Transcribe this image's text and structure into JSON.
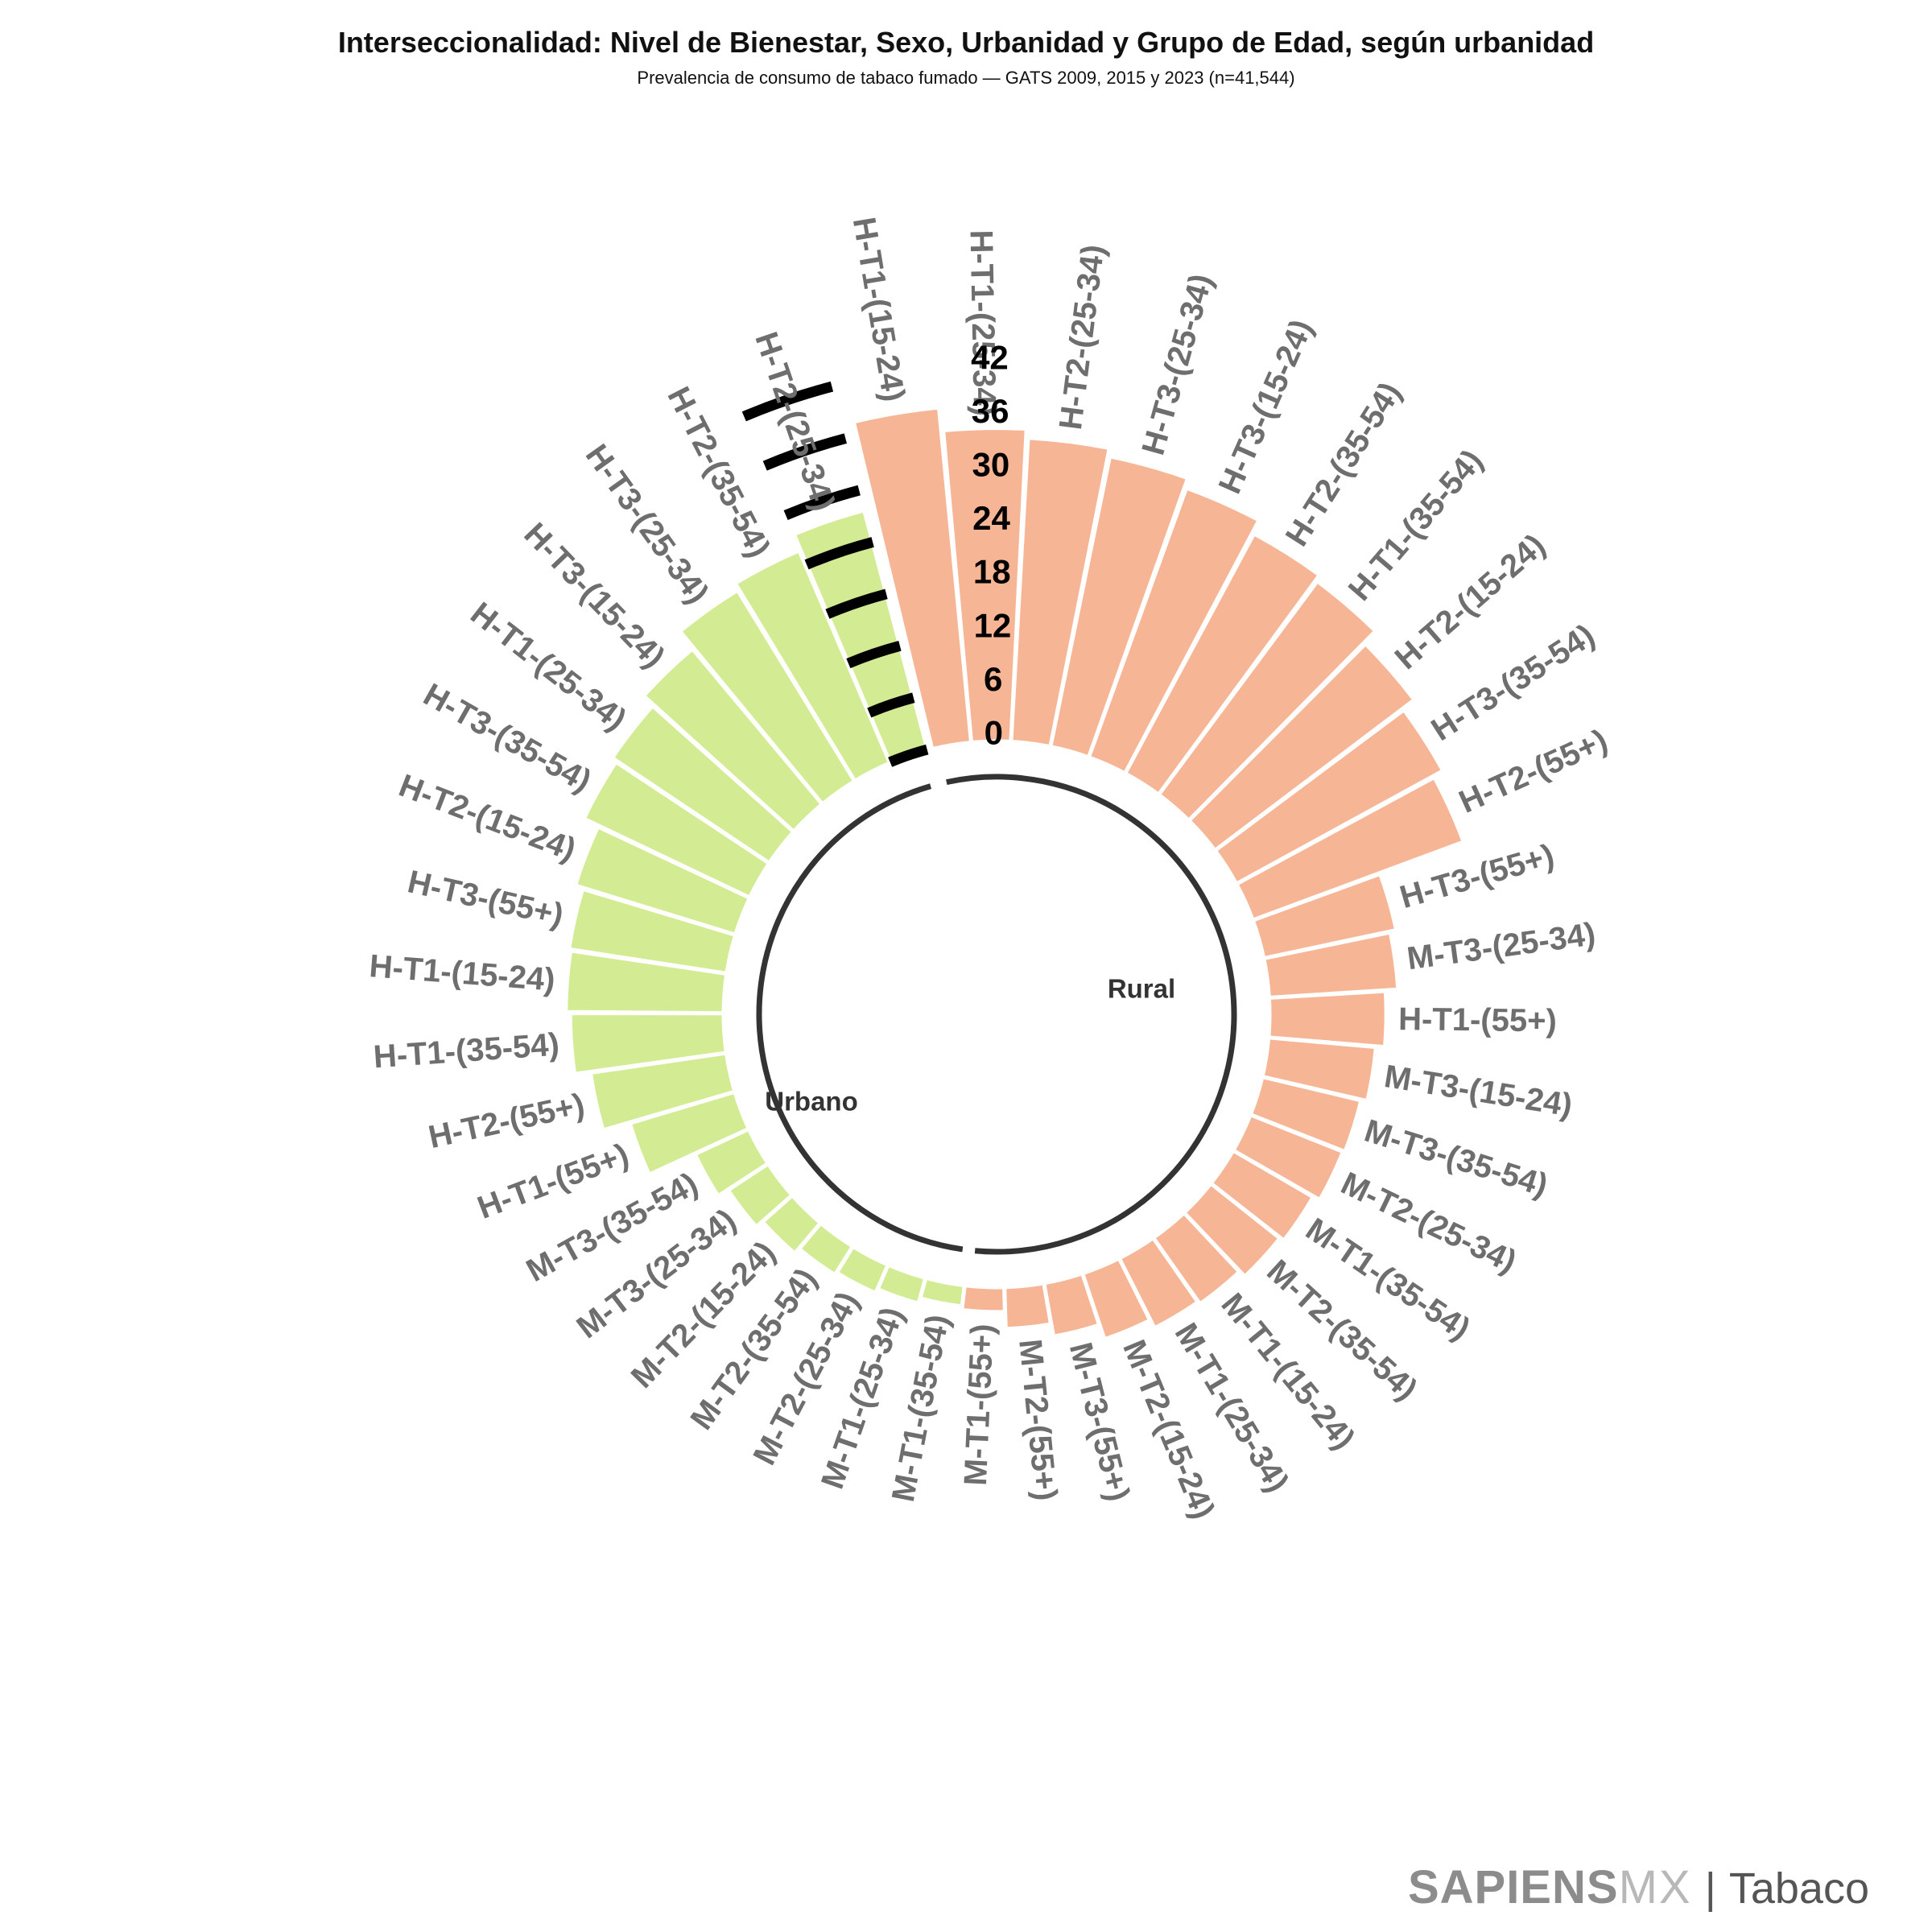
{
  "title": "Interseccionalidad: Nivel de Bienestar, Sexo, Urbanidad y Grupo de Edad, según urbanidad",
  "subtitle": "Prevalencia de consumo de tabaco fumado — GATS 2009, 2015 y 2023 (n=41,544)",
  "brand": {
    "name": "SAPIENS",
    "suffix": "MX",
    "separator": "|",
    "section": "Tabaco"
  },
  "chart_data": {
    "type": "bar",
    "coordinate_system": "polar",
    "radial_ticks": [
      "0",
      "6",
      "12",
      "18",
      "24",
      "30",
      "36",
      "42"
    ],
    "colors": {
      "Urbano": "#f6b595",
      "Rural": "#d3ec94",
      "ring": "#333333",
      "tick": "#000000",
      "label": "#6e6e6e"
    },
    "groups": [
      {
        "name": "Urbano",
        "categories": [
          "H-T1-(15-24)",
          "H-T1-(25-34)",
          "H-T2-(25-34)",
          "H-T3-(25-34)",
          "H-T3-(15-24)",
          "H-T2-(35-54)",
          "H-T1-(35-54)",
          "H-T2-(15-24)",
          "H-T3-(35-54)",
          "H-T2-(55+)",
          "H-T3-(55+)",
          "M-T3-(25-34)",
          "H-T1-(55+)",
          "M-T3-(15-24)",
          "M-T3-(35-54)",
          "M-T2-(25-34)",
          "M-T1-(35-54)",
          "M-T2-(35-54)",
          "M-T1-(15-24)",
          "M-T1-(25-34)",
          "M-T2-(15-24)",
          "M-T3-(55+)",
          "M-T2-(55+)",
          "M-T1-(55+)"
        ],
        "values": [
          37.5,
          34.9,
          33.9,
          33.0,
          31.9,
          30.3,
          29.6,
          27.8,
          26.2,
          25.0,
          15.0,
          14.3,
          12.9,
          11.9,
          11.2,
          11.0,
          10.2,
          9.7,
          8.9,
          8.6,
          7.6,
          5.9,
          4.5,
          2.6
        ]
      },
      {
        "name": "Rural",
        "categories": [
          "M-T1-(35-54)",
          "M-T1-(25-34)",
          "M-T2-(25-34)",
          "M-T2-(35-54)",
          "M-T2-(15-24)",
          "M-T3-(25-34)",
          "M-T3-(35-54)",
          "H-T1-(55+)",
          "H-T2-(55+)",
          "H-T1-(35-54)",
          "H-T1-(15-24)",
          "H-T3-(55+)",
          "H-T2-(15-24)",
          "H-T3-(35-54)",
          "H-T1-(25-34)",
          "H-T3-(15-24)",
          "H-T3-(25-34)",
          "H-T2-(35-54)",
          "H-T2-(25-34)"
        ],
        "values": [
          2.2,
          2.8,
          3.3,
          3.6,
          4.3,
          5.2,
          6.5,
          12.1,
          15.2,
          17.0,
          17.5,
          17.7,
          18.6,
          20.4,
          21.0,
          22.5,
          24.9,
          25.7,
          27.6
        ]
      }
    ]
  }
}
